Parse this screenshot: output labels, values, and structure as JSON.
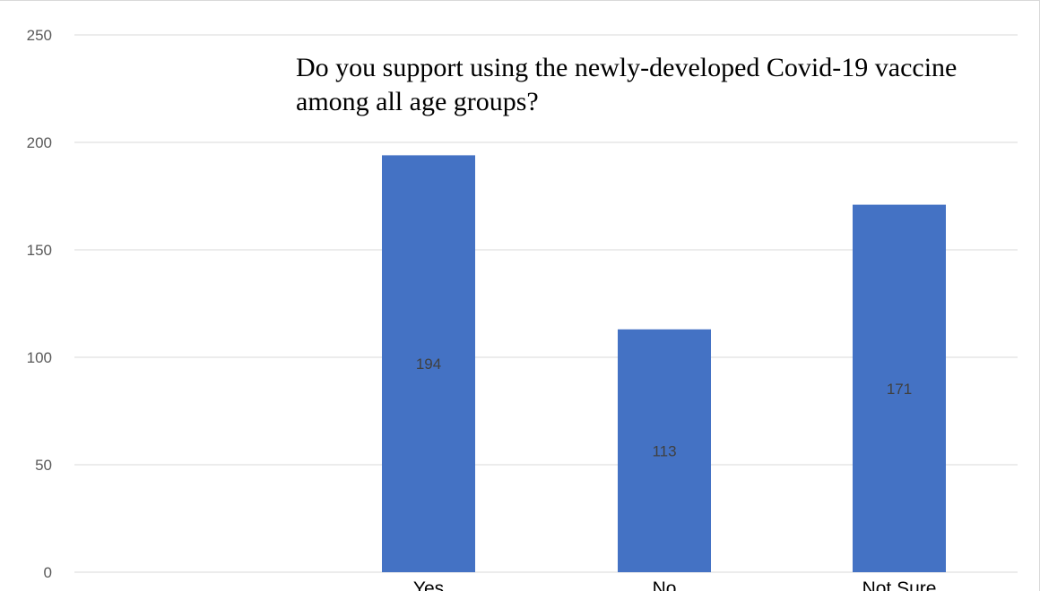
{
  "chart_data": {
    "type": "bar",
    "title": "Do you support using the newly-developed Covid-19 vaccine among all age groups?",
    "xlabel": "",
    "ylabel": "",
    "categories": [
      "Yes",
      "No",
      "Not Sure"
    ],
    "values": [
      194,
      113,
      171
    ],
    "ylim": [
      0,
      250
    ],
    "yticks": [
      0,
      50,
      100,
      150,
      200,
      250
    ],
    "grid": true,
    "legend": "none",
    "data_labels": "center",
    "colors": {
      "bar": "#4472c4",
      "grid": "#d9d9d9",
      "axis_text": "#595959",
      "data_label": "#404040"
    }
  }
}
